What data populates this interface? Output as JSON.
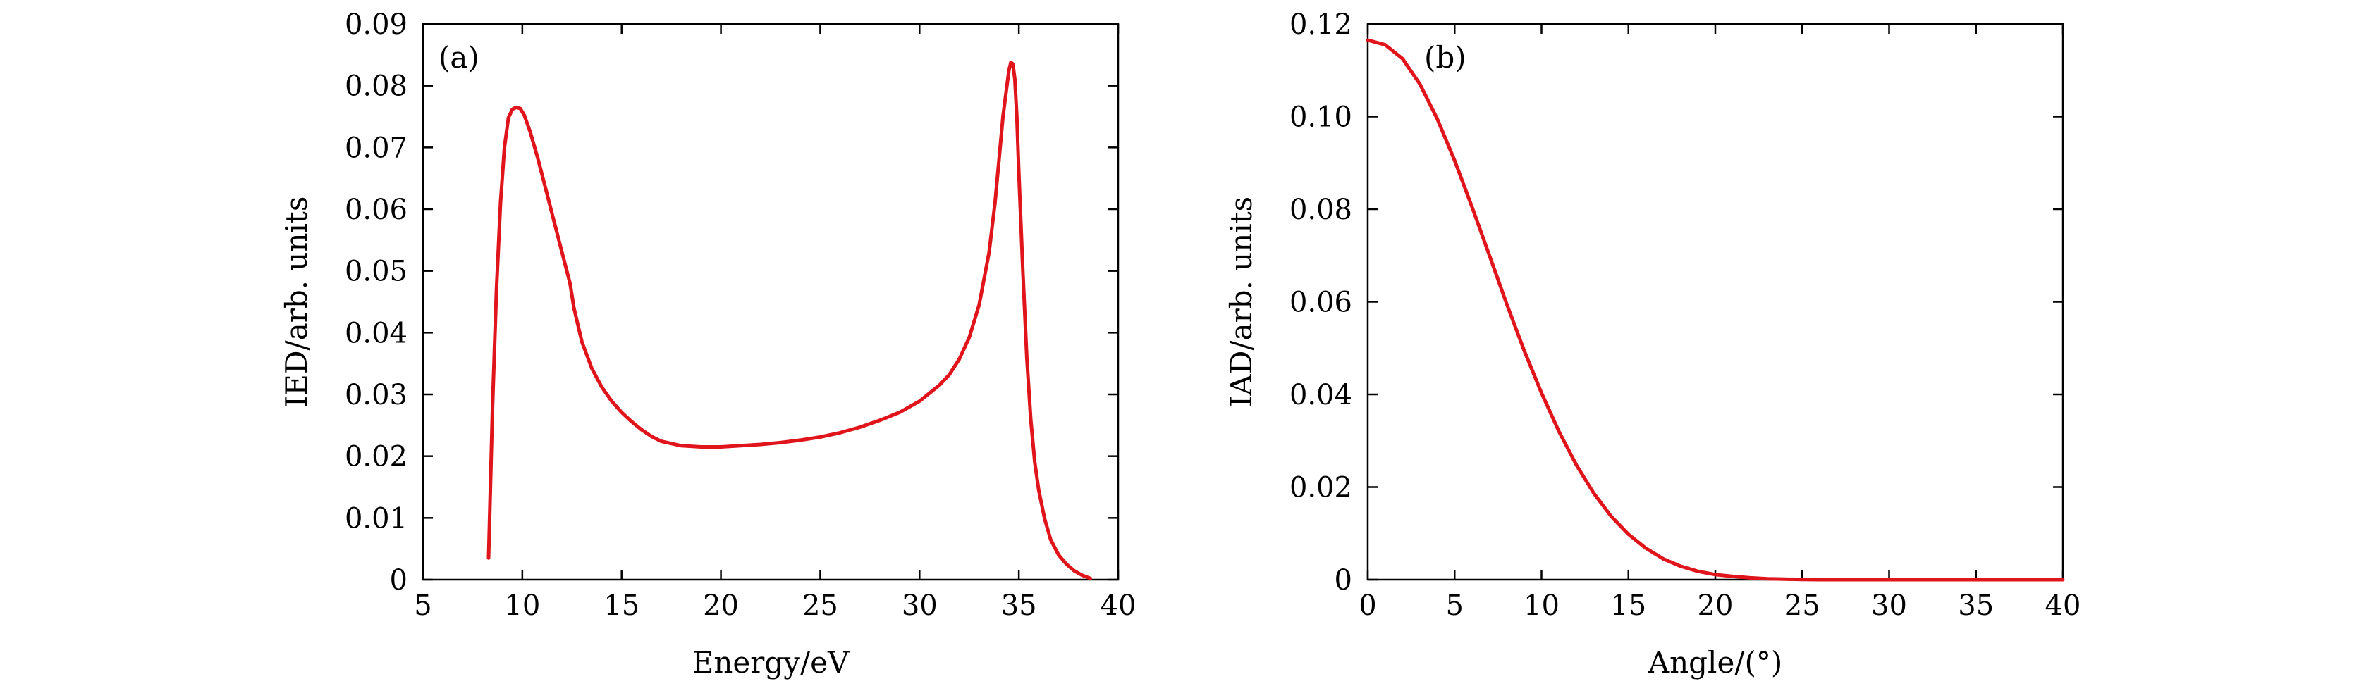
{
  "colors": {
    "line": "#e0141b",
    "axis": "#000000",
    "background": "#ffffff"
  },
  "chart_data": [
    {
      "type": "line",
      "panel_label": "(a)",
      "xlabel": "Energy/eV",
      "ylabel": "IED/arb. units",
      "xlim": [
        5,
        40
      ],
      "ylim": [
        0,
        0.09
      ],
      "xticks": [
        5,
        10,
        15,
        20,
        25,
        30,
        35,
        40
      ],
      "xtick_labels": [
        "5",
        "10",
        "15",
        "20",
        "25",
        "30",
        "35",
        "40"
      ],
      "yticks": [
        0,
        0.01,
        0.02,
        0.03,
        0.04,
        0.05,
        0.06,
        0.07,
        0.08,
        0.09
      ],
      "ytick_labels": [
        "0",
        "0.01",
        "0.02",
        "0.03",
        "0.04",
        "0.05",
        "0.06",
        "0.07",
        "0.08",
        "0.09"
      ],
      "grid": false,
      "series": [
        {
          "x": [
            8.3,
            8.5,
            8.7,
            8.9,
            9.1,
            9.3,
            9.5,
            9.7,
            9.9,
            10.1,
            10.4,
            10.8,
            11.2,
            11.6,
            12.0,
            12.4,
            12.6,
            13.0,
            13.5,
            14.0,
            14.5,
            15.0,
            15.5,
            16.0,
            16.5,
            17.0,
            18.0,
            19.0,
            20.0,
            21.0,
            22.0,
            23.0,
            24.0,
            25.0,
            26.0,
            27.0,
            28.0,
            29.0,
            30.0,
            31.0,
            31.5,
            32.0,
            32.5,
            33.0,
            33.5,
            33.8,
            34.0,
            34.2,
            34.4,
            34.5,
            34.6,
            34.7,
            34.8,
            34.9,
            35.0,
            35.2,
            35.4,
            35.6,
            35.8,
            36.0,
            36.3,
            36.6,
            37.0,
            37.4,
            37.8,
            38.2,
            38.6
          ],
          "y": [
            0.0035,
            0.028,
            0.047,
            0.061,
            0.07,
            0.0748,
            0.0762,
            0.0765,
            0.0763,
            0.0752,
            0.0725,
            0.068,
            0.063,
            0.058,
            0.053,
            0.048,
            0.044,
            0.0385,
            0.0342,
            0.0312,
            0.0289,
            0.0271,
            0.0256,
            0.0243,
            0.0232,
            0.0224,
            0.0217,
            0.0215,
            0.0215,
            0.0217,
            0.0219,
            0.0222,
            0.0226,
            0.0231,
            0.0238,
            0.0247,
            0.0258,
            0.0271,
            0.0289,
            0.0315,
            0.0332,
            0.0357,
            0.0392,
            0.0445,
            0.053,
            0.061,
            0.068,
            0.075,
            0.08,
            0.0825,
            0.0838,
            0.0835,
            0.081,
            0.075,
            0.066,
            0.05,
            0.036,
            0.026,
            0.019,
            0.0145,
            0.0098,
            0.0065,
            0.004,
            0.0025,
            0.0014,
            0.0007,
            0.0002
          ]
        }
      ]
    },
    {
      "type": "line",
      "panel_label": "(b)",
      "xlabel": "Angle/(°)",
      "ylabel": "IAD/arb. units",
      "xlim": [
        0,
        40
      ],
      "ylim": [
        0,
        0.12
      ],
      "xticks": [
        0,
        5,
        10,
        15,
        20,
        25,
        30,
        35,
        40
      ],
      "xtick_labels": [
        "0",
        "5",
        "10",
        "15",
        "20",
        "25",
        "30",
        "35",
        "40"
      ],
      "yticks": [
        0,
        0.02,
        0.04,
        0.06,
        0.08,
        0.1,
        0.12
      ],
      "ytick_labels": [
        "0",
        "0.02",
        "0.04",
        "0.06",
        "0.08",
        "0.10",
        "0.12"
      ],
      "grid": false,
      "series": [
        {
          "x": [
            0,
            1,
            2,
            3,
            4,
            5,
            6,
            7,
            8,
            9,
            10,
            11,
            12,
            13,
            14,
            15,
            16,
            17,
            18,
            19,
            20,
            21,
            22,
            23,
            24,
            25,
            26,
            28,
            30,
            35,
            40
          ],
          "y": [
            0.1165,
            0.1155,
            0.1125,
            0.107,
            0.0995,
            0.0905,
            0.0805,
            0.07,
            0.0595,
            0.0495,
            0.0403,
            0.032,
            0.0248,
            0.0187,
            0.0137,
            0.0098,
            0.0068,
            0.0045,
            0.0029,
            0.0018,
            0.0011,
            0.0007,
            0.0004,
            0.0002,
            0.0001,
            5e-05,
            0,
            0,
            0,
            0,
            0
          ]
        }
      ]
    }
  ]
}
